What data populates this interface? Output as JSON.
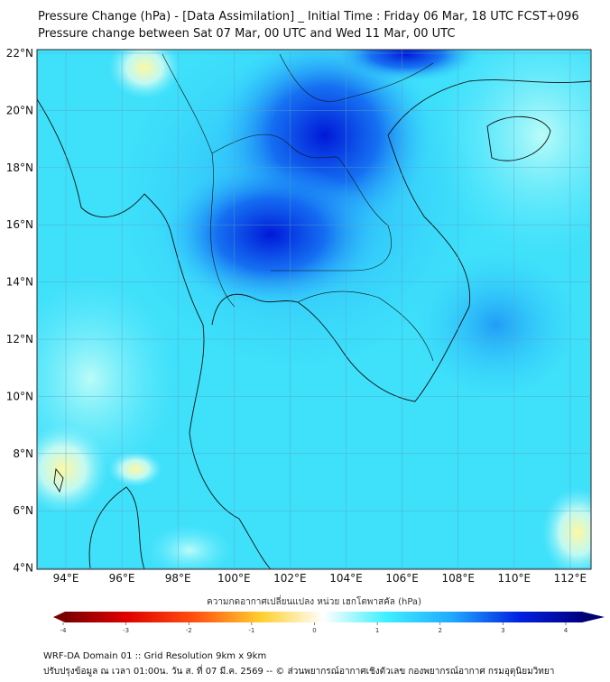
{
  "header": {
    "title": "Pressure Change (hPa) - [Data Assimilation] _ Initial Time : Friday 06 Mar, 18 UTC FCST+096",
    "subtitle": "Pressure change between Sat 07 Mar, 00 UTC and Wed 11 Mar, 00 UTC"
  },
  "map": {
    "lat_labels": [
      "22°N",
      "20°N",
      "18°N",
      "16°N",
      "14°N",
      "12°N",
      "10°N",
      "8°N",
      "6°N",
      "4°N"
    ],
    "lon_labels": [
      "94°E",
      "96°E",
      "98°E",
      "100°E",
      "102°E",
      "104°E",
      "106°E",
      "108°E",
      "110°E",
      "112°E"
    ]
  },
  "colorbar": {
    "title": "ความกดอากาศเปลี่ยนแปลง หน่วย เฮกโตพาสคัล (hPa)",
    "ticks": [
      "-4",
      "-3",
      "-2",
      "-1",
      "0",
      "1",
      "2",
      "3",
      "4"
    ],
    "range": [
      -4,
      4
    ],
    "colors": [
      "#7a0000",
      "#ff1010",
      "#ffa000",
      "#ffee60",
      "#ffffff",
      "#40f0ff",
      "#20a0ff",
      "#0010e0",
      "#000070"
    ]
  },
  "footer": {
    "line1": "WRF-DA Domain 01 :: Grid Resolution 9km x 9km",
    "line2": "ปรับปรุงข้อมูล ณ เวลา 01:00น. วัน ส. ที่ 07 มี.ค. 2569 -- © ส่วนพยากรณ์อากาศเชิงตัวเลข กองพยากรณ์อากาศ กรมอุตุนิยมวิทยา"
  }
}
